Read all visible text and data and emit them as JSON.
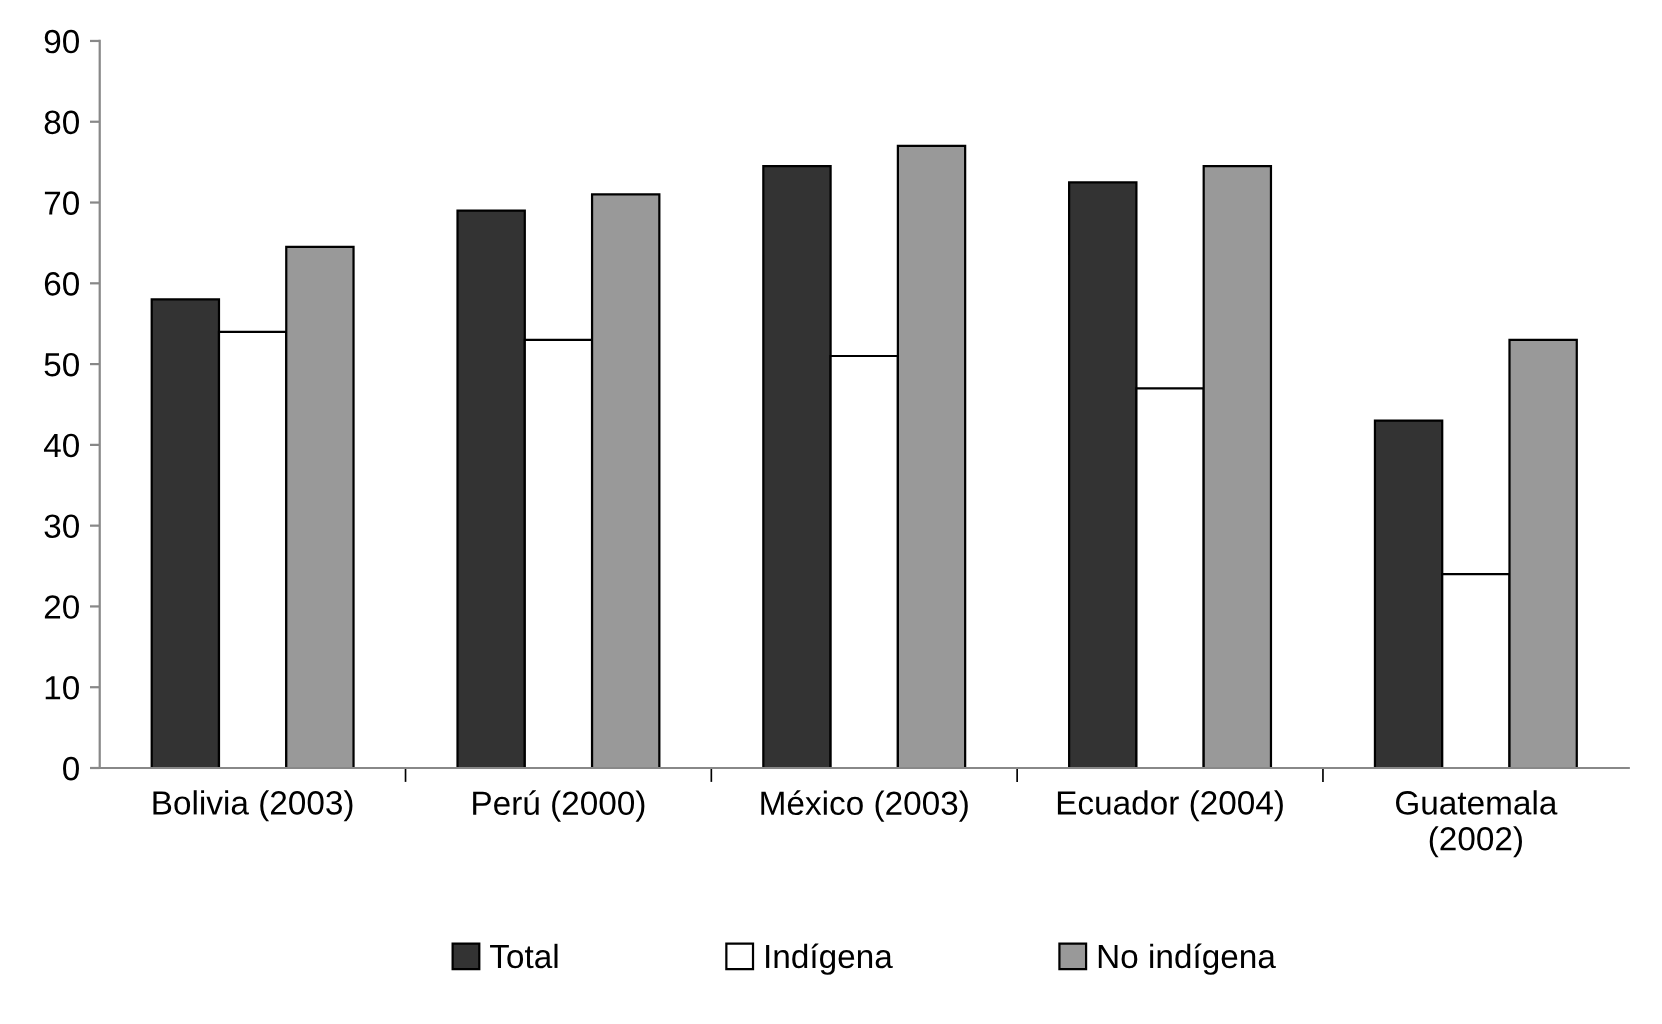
{
  "chart_data": {
    "type": "bar",
    "categories": [
      "Bolivia (2003)",
      "Perú (2000)",
      "México (2003)",
      "Ecuador (2004)",
      "Guatemala\n(2002)"
    ],
    "series": [
      {
        "name": "Total",
        "color": "#333333",
        "values": [
          58,
          69,
          74.5,
          72.5,
          43
        ]
      },
      {
        "name": "Indígena",
        "color": "#ffffff",
        "values": [
          54,
          53,
          51,
          47,
          24
        ]
      },
      {
        "name": "No indígena",
        "color": "#999999",
        "values": [
          64.5,
          71,
          77,
          74.5,
          53
        ]
      }
    ],
    "ylim": [
      0,
      90
    ],
    "yticks": [
      0,
      10,
      20,
      30,
      40,
      50,
      60,
      70,
      80,
      90
    ],
    "grid": false,
    "legend": "bottom"
  }
}
